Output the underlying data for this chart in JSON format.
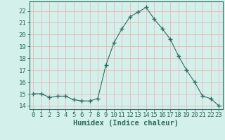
{
  "x": [
    0,
    1,
    2,
    3,
    4,
    5,
    6,
    7,
    8,
    9,
    10,
    11,
    12,
    13,
    14,
    15,
    16,
    17,
    18,
    19,
    20,
    21,
    22,
    23
  ],
  "y": [
    15.0,
    15.0,
    14.7,
    14.8,
    14.8,
    14.5,
    14.4,
    14.4,
    14.6,
    17.4,
    19.3,
    20.5,
    21.5,
    21.9,
    22.3,
    21.3,
    20.5,
    19.6,
    18.2,
    17.0,
    16.0,
    14.8,
    14.6,
    14.0
  ],
  "line_color": "#2e6b5e",
  "marker": "+",
  "marker_size": 4,
  "bg_color": "#d4f0eb",
  "grid_color_major": "#e8b8b8",
  "grid_color_minor": "#cce8e4",
  "xlabel": "Humidex (Indice chaleur)",
  "ylabel_ticks": [
    14,
    15,
    16,
    17,
    18,
    19,
    20,
    21,
    22
  ],
  "ylim": [
    13.7,
    22.8
  ],
  "xlim": [
    -0.5,
    23.5
  ],
  "xlabel_fontsize": 7.5,
  "tick_fontsize": 6.5,
  "tick_color": "#2e6b5e",
  "spine_color": "#2e6b5e"
}
